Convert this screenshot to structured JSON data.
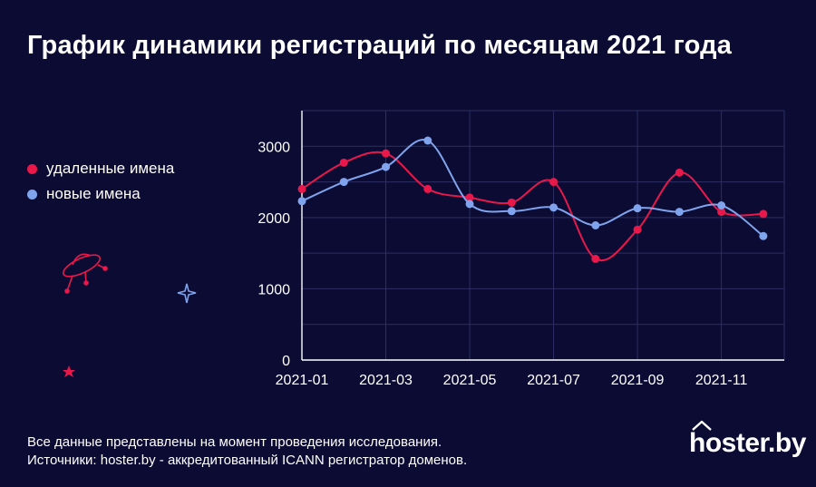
{
  "title": "График динамики регистраций по месяцам 2021 года",
  "legend": [
    {
      "label": "удаленные имена",
      "color": "#e8194a"
    },
    {
      "label": "новые имена",
      "color": "#7fa3ec"
    }
  ],
  "footer": {
    "line1": "Все данные представлены на момент проведения исследования.",
    "line2": "Источники: hoster.by - аккредитованный ICANN регистратор доменов."
  },
  "logo": "hoster.by",
  "chart_data": {
    "type": "line",
    "x": [
      "2021-01",
      "2021-02",
      "2021-03",
      "2021-04",
      "2021-05",
      "2021-06",
      "2021-07",
      "2021-08",
      "2021-09",
      "2021-10",
      "2021-11",
      "2021-12"
    ],
    "xticks": [
      "2021-01",
      "2021-03",
      "2021-05",
      "2021-07",
      "2021-09",
      "2021-11"
    ],
    "yticks": [
      0,
      1000,
      2000,
      3000
    ],
    "ylim": [
      0,
      3500
    ],
    "grid": true,
    "series": [
      {
        "name": "удаленные имена",
        "color": "#e8194a",
        "values": [
          2400,
          2770,
          2900,
          2400,
          2280,
          2210,
          2500,
          1420,
          1830,
          2630,
          2080,
          2050
        ]
      },
      {
        "name": "новые имена",
        "color": "#7fa3ec",
        "values": [
          2230,
          2500,
          2710,
          3080,
          2190,
          2090,
          2140,
          1890,
          2130,
          2080,
          2170,
          1740
        ]
      }
    ]
  }
}
